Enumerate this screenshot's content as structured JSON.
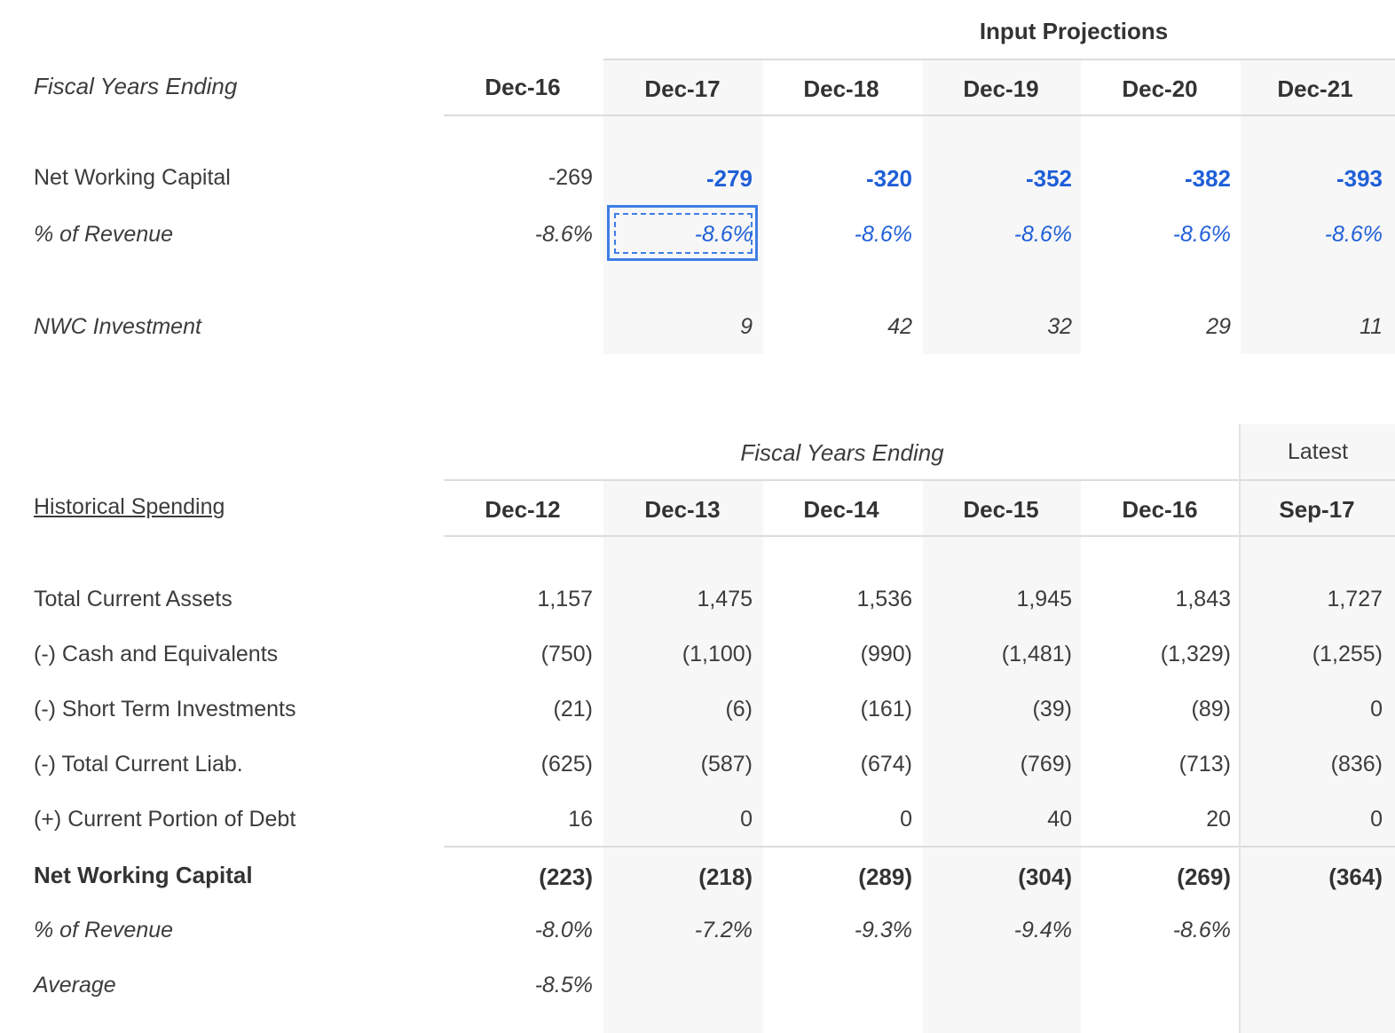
{
  "top": {
    "group_header": "Input Projections",
    "years_label": "Fiscal Years Ending",
    "columns": [
      "Dec-16",
      "Dec-17",
      "Dec-18",
      "Dec-19",
      "Dec-20",
      "Dec-21"
    ],
    "rows": {
      "nwc": {
        "label": "Net Working Capital",
        "values": [
          "-269",
          "-279",
          "-320",
          "-352",
          "-382",
          "-393"
        ]
      },
      "pct": {
        "label": "% of Revenue",
        "values": [
          "-8.6%",
          "-8.6%",
          "-8.6%",
          "-8.6%",
          "-8.6%",
          "-8.6%"
        ]
      },
      "inv": {
        "label": "NWC Investment",
        "values": [
          "",
          "9",
          "42",
          "32",
          "29",
          "11"
        ]
      }
    }
  },
  "bottom": {
    "years_label": "Fiscal Years Ending",
    "latest_label": "Latest",
    "section_label": "Historical Spending",
    "columns": [
      "Dec-12",
      "Dec-13",
      "Dec-14",
      "Dec-15",
      "Dec-16",
      "Sep-17"
    ],
    "rows": [
      {
        "label": "Total Current Assets",
        "values": [
          "1,157",
          "1,475",
          "1,536",
          "1,945",
          "1,843",
          "1,727"
        ]
      },
      {
        "label": "(-) Cash and Equivalents",
        "values": [
          "(750)",
          "(1,100)",
          "(990)",
          "(1,481)",
          "(1,329)",
          "(1,255)"
        ]
      },
      {
        "label": "(-) Short Term Investments",
        "values": [
          "(21)",
          "(6)",
          "(161)",
          "(39)",
          "(89)",
          "0"
        ]
      },
      {
        "label": "(-) Total Current Liab.",
        "values": [
          "(625)",
          "(587)",
          "(674)",
          "(769)",
          "(713)",
          "(836)"
        ]
      },
      {
        "label": "(+) Current Portion of Debt",
        "values": [
          "16",
          "0",
          "0",
          "40",
          "20",
          "0"
        ]
      },
      {
        "label": "Net Working Capital",
        "values": [
          "(223)",
          "(218)",
          "(289)",
          "(304)",
          "(269)",
          "(364)"
        ]
      },
      {
        "label": "% of Revenue",
        "values": [
          "-8.0%",
          "-7.2%",
          "-9.3%",
          "-9.4%",
          "-8.6%",
          ""
        ]
      },
      {
        "label": "Average",
        "values": [
          "-8.5%",
          "",
          "",
          "",
          "",
          ""
        ]
      }
    ]
  },
  "colors": {
    "input_blue": "#1f5fd8",
    "selection_border": "#3d7ee6",
    "shade": "#f7f7f7"
  }
}
